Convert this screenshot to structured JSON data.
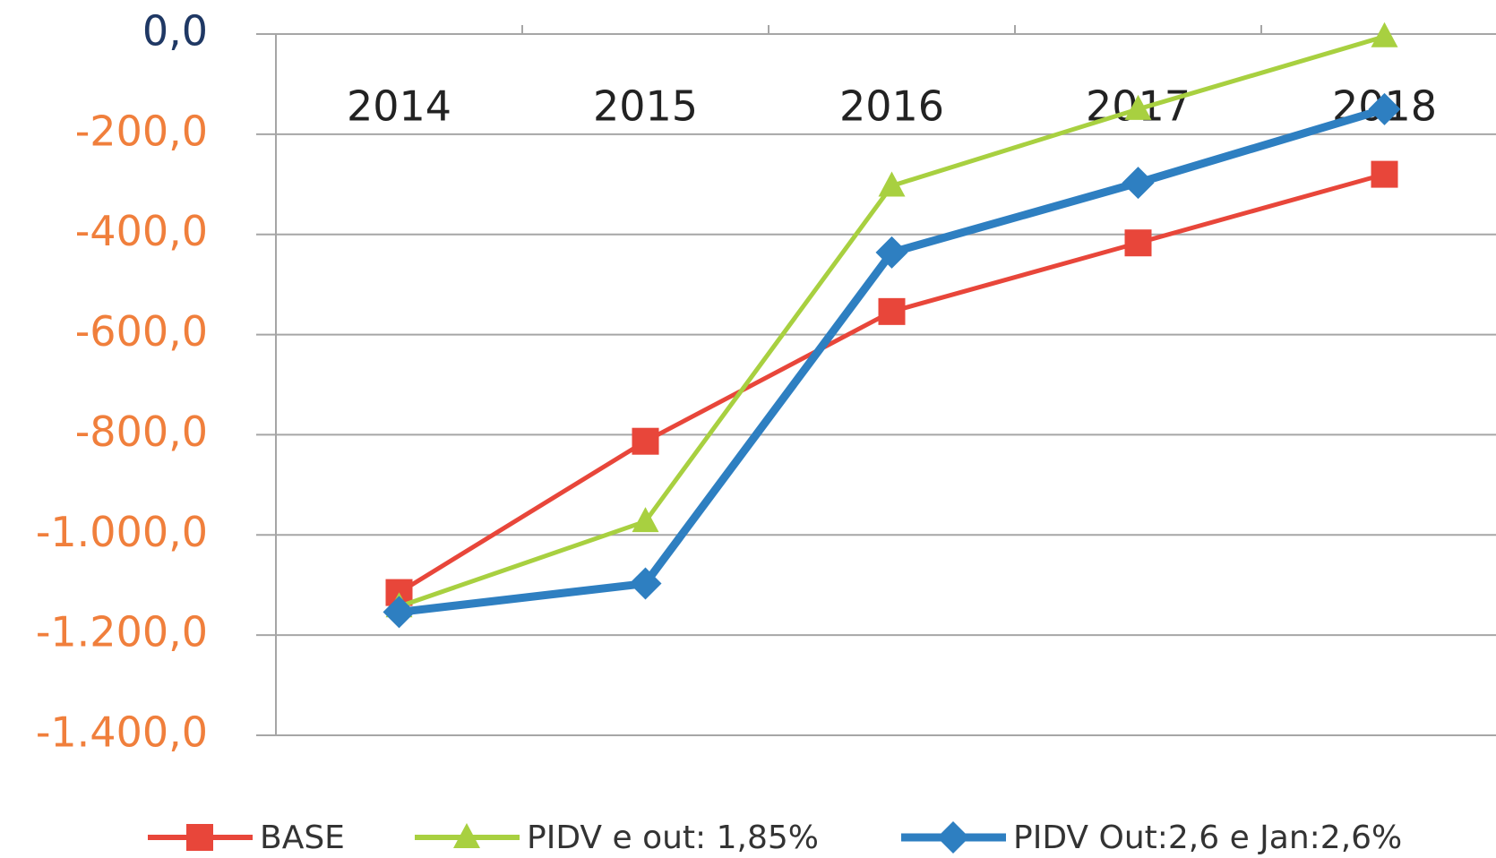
{
  "chart_data": {
    "type": "line",
    "categories": [
      "2014",
      "2015",
      "2016",
      "2017",
      "2018"
    ],
    "series": [
      {
        "name": "BASE",
        "color": "#e8463a",
        "marker": "square",
        "values": [
          -1115,
          -813,
          -554,
          -417,
          -280
        ]
      },
      {
        "name": "PIDV e out: 1,85%",
        "color": "#a8d040",
        "marker": "triangle",
        "values": [
          -1143,
          -973,
          -303,
          -150,
          -5
        ]
      },
      {
        "name": "PIDV Out:2,6 e Jan:2,6%",
        "color": "#2e7fc1",
        "marker": "diamond",
        "values": [
          -1154,
          -1097,
          -436,
          -297,
          -150
        ]
      }
    ],
    "ylim": [
      -1400,
      0
    ],
    "yticks": [
      {
        "value": 0,
        "label": "0,0"
      },
      {
        "value": -200,
        "label": "-200,0"
      },
      {
        "value": -400,
        "label": "-400,0"
      },
      {
        "value": -600,
        "label": "-600,0"
      },
      {
        "value": -800,
        "label": "-800,0"
      },
      {
        "value": -1000,
        "label": "-1.000,0"
      },
      {
        "value": -1200,
        "label": "-1.200,0"
      },
      {
        "value": -1400,
        "label": "-1.400,0"
      }
    ],
    "grid": true,
    "legend": "bottom"
  }
}
